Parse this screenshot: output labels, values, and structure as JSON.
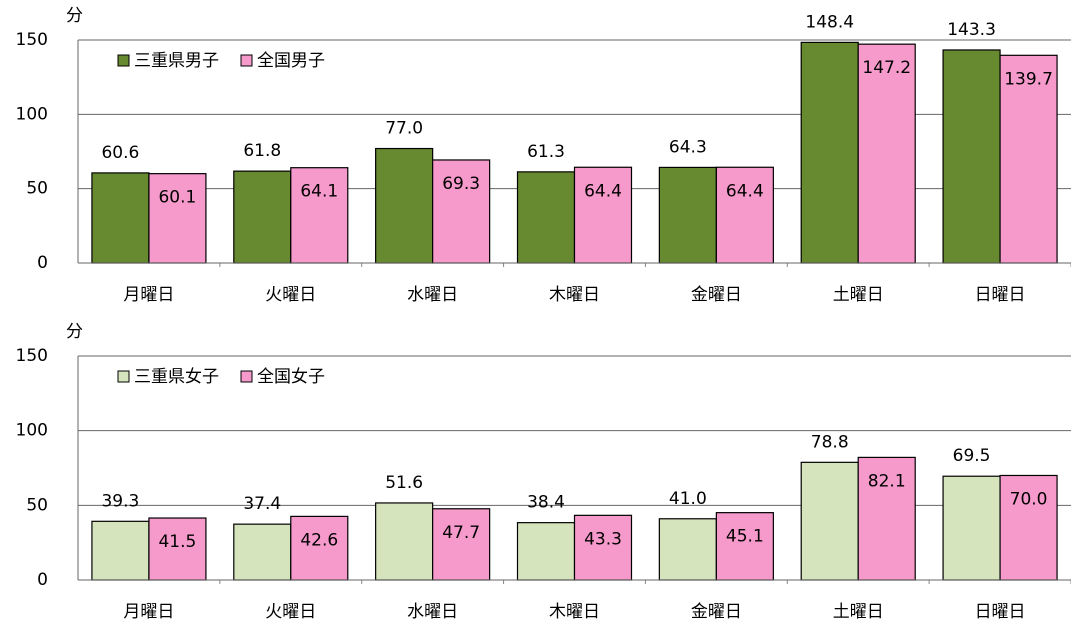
{
  "chart_data": [
    {
      "type": "bar",
      "y_label": "分",
      "categories": [
        "月曜日",
        "火曜日",
        "水曜日",
        "木曜日",
        "金曜日",
        "土曜日",
        "日曜日"
      ],
      "series": [
        {
          "name": "三重県男子",
          "color": "#67892f",
          "values": [
            60.6,
            61.8,
            77.0,
            61.3,
            64.3,
            148.4,
            143.3
          ],
          "value_labels": [
            "60.6",
            "61.8",
            "77.0",
            "61.3",
            "64.3",
            "148.4",
            "143.3"
          ]
        },
        {
          "name": "全国男子",
          "color": "#f59acb",
          "values": [
            60.1,
            64.1,
            69.3,
            64.4,
            64.4,
            147.2,
            139.7
          ],
          "value_labels": [
            "60.1",
            "64.1",
            "69.3",
            "64.4",
            "64.4",
            "147.2",
            "139.7"
          ]
        }
      ],
      "ylim": [
        0,
        150
      ],
      "yticks": [
        0,
        50,
        100,
        150
      ],
      "grid": true,
      "legend": "upper left"
    },
    {
      "type": "bar",
      "y_label": "分",
      "categories": [
        "月曜日",
        "火曜日",
        "水曜日",
        "木曜日",
        "金曜日",
        "土曜日",
        "日曜日"
      ],
      "series": [
        {
          "name": "三重県女子",
          "color": "#d6e4bd",
          "values": [
            39.3,
            37.4,
            51.6,
            38.4,
            41.0,
            78.8,
            69.5
          ],
          "value_labels": [
            "39.3",
            "37.4",
            "51.6",
            "38.4",
            "41.0",
            "78.8",
            "69.5"
          ]
        },
        {
          "name": "全国女子",
          "color": "#f59acb",
          "values": [
            41.5,
            42.6,
            47.7,
            43.3,
            45.1,
            82.1,
            70.0
          ],
          "value_labels": [
            "41.5",
            "42.6",
            "47.7",
            "43.3",
            "45.1",
            "82.1",
            "70.0"
          ]
        }
      ],
      "ylim": [
        0,
        150
      ],
      "yticks": [
        0,
        50,
        100,
        150
      ],
      "grid": true,
      "legend": "upper left"
    }
  ]
}
